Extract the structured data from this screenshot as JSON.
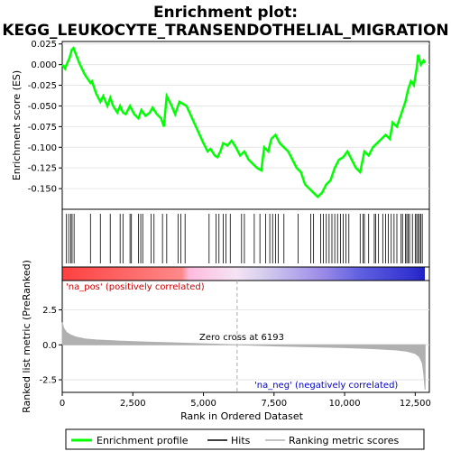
{
  "chart_data": {
    "type": "line",
    "title_line1": "Enrichment plot:",
    "title_line2": "KEGG_LEUKOCYTE_TRANSENDOTHELIAL_MIGRATION",
    "colors": {
      "es_line": "#00ff00",
      "hits": "#000000",
      "metric_fill": "#b0b0b0",
      "pos_text": "#cc0000",
      "neg_text": "#0000cc",
      "zero_line": "#aaaaaa"
    },
    "es_panel": {
      "ylabel": "Enrichment score (ES)",
      "ylim": [
        -0.175,
        0.028
      ],
      "yticks": [
        -0.15,
        -0.125,
        -0.1,
        -0.075,
        -0.05,
        -0.025,
        0.0,
        0.025
      ],
      "ytick_labels": [
        "-0.150",
        "-0.125",
        "-0.100",
        "-0.075",
        "-0.050",
        "-0.025",
        "0.000",
        "0.025"
      ],
      "curve_points": [
        [
          0,
          0.0
        ],
        [
          100,
          -0.005
        ],
        [
          180,
          0.002
        ],
        [
          260,
          0.008
        ],
        [
          340,
          0.018
        ],
        [
          400,
          0.02
        ],
        [
          600,
          0.002
        ],
        [
          800,
          -0.012
        ],
        [
          1000,
          -0.022
        ],
        [
          1050,
          -0.02
        ],
        [
          1200,
          -0.035
        ],
        [
          1350,
          -0.045
        ],
        [
          1450,
          -0.038
        ],
        [
          1600,
          -0.05
        ],
        [
          1700,
          -0.04
        ],
        [
          1800,
          -0.05
        ],
        [
          1950,
          -0.058
        ],
        [
          2050,
          -0.05
        ],
        [
          2150,
          -0.058
        ],
        [
          2250,
          -0.06
        ],
        [
          2400,
          -0.05
        ],
        [
          2550,
          -0.06
        ],
        [
          2700,
          -0.065
        ],
        [
          2800,
          -0.055
        ],
        [
          2950,
          -0.062
        ],
        [
          3100,
          -0.058
        ],
        [
          3200,
          -0.052
        ],
        [
          3350,
          -0.06
        ],
        [
          3500,
          -0.065
        ],
        [
          3600,
          -0.075
        ],
        [
          3700,
          -0.038
        ],
        [
          3850,
          -0.048
        ],
        [
          4000,
          -0.06
        ],
        [
          4150,
          -0.045
        ],
        [
          4300,
          -0.048
        ],
        [
          4400,
          -0.05
        ],
        [
          4600,
          -0.065
        ],
        [
          4800,
          -0.08
        ],
        [
          5000,
          -0.095
        ],
        [
          5150,
          -0.105
        ],
        [
          5250,
          -0.102
        ],
        [
          5400,
          -0.11
        ],
        [
          5500,
          -0.112
        ],
        [
          5600,
          -0.105
        ],
        [
          5700,
          -0.095
        ],
        [
          5850,
          -0.098
        ],
        [
          6000,
          -0.092
        ],
        [
          6150,
          -0.1
        ],
        [
          6300,
          -0.11
        ],
        [
          6450,
          -0.105
        ],
        [
          6600,
          -0.115
        ],
        [
          6750,
          -0.12
        ],
        [
          6900,
          -0.125
        ],
        [
          7050,
          -0.128
        ],
        [
          7150,
          -0.1
        ],
        [
          7300,
          -0.105
        ],
        [
          7400,
          -0.09
        ],
        [
          7550,
          -0.085
        ],
        [
          7700,
          -0.095
        ],
        [
          7850,
          -0.1
        ],
        [
          8000,
          -0.105
        ],
        [
          8150,
          -0.115
        ],
        [
          8300,
          -0.125
        ],
        [
          8450,
          -0.13
        ],
        [
          8600,
          -0.145
        ],
        [
          8750,
          -0.15
        ],
        [
          8900,
          -0.155
        ],
        [
          9050,
          -0.16
        ],
        [
          9200,
          -0.155
        ],
        [
          9350,
          -0.145
        ],
        [
          9500,
          -0.14
        ],
        [
          9650,
          -0.125
        ],
        [
          9800,
          -0.115
        ],
        [
          9950,
          -0.112
        ],
        [
          10100,
          -0.105
        ],
        [
          10250,
          -0.115
        ],
        [
          10400,
          -0.125
        ],
        [
          10550,
          -0.13
        ],
        [
          10700,
          -0.105
        ],
        [
          10850,
          -0.11
        ],
        [
          11000,
          -0.1
        ],
        [
          11150,
          -0.095
        ],
        [
          11300,
          -0.09
        ],
        [
          11450,
          -0.085
        ],
        [
          11600,
          -0.09
        ],
        [
          11700,
          -0.07
        ],
        [
          11850,
          -0.075
        ],
        [
          12000,
          -0.06
        ],
        [
          12150,
          -0.045
        ],
        [
          12250,
          -0.03
        ],
        [
          12350,
          -0.02
        ],
        [
          12450,
          -0.025
        ],
        [
          12550,
          -0.005
        ],
        [
          12600,
          0.012
        ],
        [
          12700,
          0.0
        ],
        [
          12800,
          0.005
        ],
        [
          12850,
          0.002
        ]
      ]
    },
    "hits_panel": {
      "hit_positions": [
        150,
        230,
        300,
        350,
        420,
        1000,
        1350,
        1700,
        2050,
        2150,
        2400,
        2450,
        2700,
        2780,
        2850,
        3150,
        3250,
        3550,
        3700,
        4100,
        4200,
        4350,
        5200,
        5450,
        5550,
        5700,
        5800,
        5950,
        6350,
        6450,
        6800,
        7000,
        7200,
        7350,
        7450,
        7550,
        7650,
        7850,
        8350,
        8800,
        8900,
        9150,
        9250,
        9350,
        9450,
        9550,
        9650,
        9750,
        9850,
        9950,
        10050,
        10150,
        10550,
        10650,
        10700,
        10850,
        11050,
        11100,
        11200,
        11350,
        11450,
        11550,
        11650,
        11750,
        11850,
        12000,
        12050,
        12150,
        12200,
        12250,
        12300,
        12400,
        12500,
        12550,
        12600,
        12650,
        12700,
        12750
      ]
    },
    "metric_panel": {
      "ylabel": "Ranked list metric (PreRanked)",
      "xlabel": "Rank in Ordered Dataset",
      "ylim": [
        -3.4,
        4.6
      ],
      "yticks": [
        -2.5,
        0.0,
        2.5
      ],
      "ytick_labels": [
        "-2.5",
        "0.0",
        "2.5"
      ],
      "xlim": [
        0,
        13000
      ],
      "xticks": [
        0,
        2500,
        5000,
        7500,
        10000,
        12500
      ],
      "xtick_labels": [
        "0",
        "2,500",
        "5,000",
        "7,500",
        "10,000",
        "12,500"
      ],
      "zero_cross": 6193,
      "zero_cross_text": "Zero cross at 6193",
      "pos_label": "'na_pos' (positively correlated)",
      "neg_label": "'na_neg' (negatively correlated)",
      "metric_points": [
        [
          0,
          1.6
        ],
        [
          50,
          1.2
        ],
        [
          150,
          0.9
        ],
        [
          300,
          0.7
        ],
        [
          500,
          0.55
        ],
        [
          800,
          0.42
        ],
        [
          1200,
          0.35
        ],
        [
          2000,
          0.27
        ],
        [
          3000,
          0.2
        ],
        [
          4000,
          0.14
        ],
        [
          5000,
          0.08
        ],
        [
          6193,
          0.0
        ],
        [
          7500,
          -0.08
        ],
        [
          9000,
          -0.15
        ],
        [
          10000,
          -0.2
        ],
        [
          11000,
          -0.27
        ],
        [
          11800,
          -0.36
        ],
        [
          12200,
          -0.46
        ],
        [
          12500,
          -0.62
        ],
        [
          12650,
          -0.85
        ],
        [
          12750,
          -1.3
        ],
        [
          12800,
          -2.0
        ],
        [
          12850,
          -3.2
        ]
      ]
    },
    "legend": {
      "items": [
        {
          "label": "Enrichment profile"
        },
        {
          "label": "Hits"
        },
        {
          "label": "Ranking metric scores"
        }
      ]
    }
  }
}
